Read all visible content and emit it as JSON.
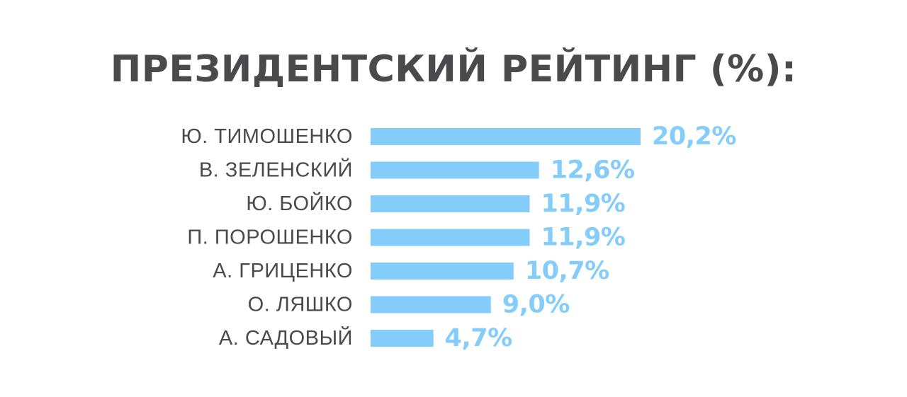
{
  "chart_data": {
    "type": "bar",
    "orientation": "horizontal",
    "title": "ПРЕЗИДЕНТСКИЙ РЕЙТИНГ (%):",
    "categories": [
      "Ю. ТИМОШЕНКО",
      "В. ЗЕЛЕНСКИЙ",
      "Ю. БОЙКО",
      "П. ПОРОШЕНКО",
      "А. ГРИЦЕНКО",
      "О. ЛЯШКО",
      "А. САДОВЫЙ"
    ],
    "values": [
      20.2,
      12.6,
      11.9,
      11.9,
      10.7,
      9.0,
      4.7
    ],
    "value_labels": [
      "20,2%",
      "12,6%",
      "11,9%",
      "11,9%",
      "10,7%",
      "9,0%",
      "4,7%"
    ],
    "xlim": [
      0,
      20.2
    ],
    "grid": false,
    "legend": "none",
    "bar_color": "#84ccfa",
    "value_label_color": "#84ccfa",
    "text_color": "#4a4a4c"
  }
}
